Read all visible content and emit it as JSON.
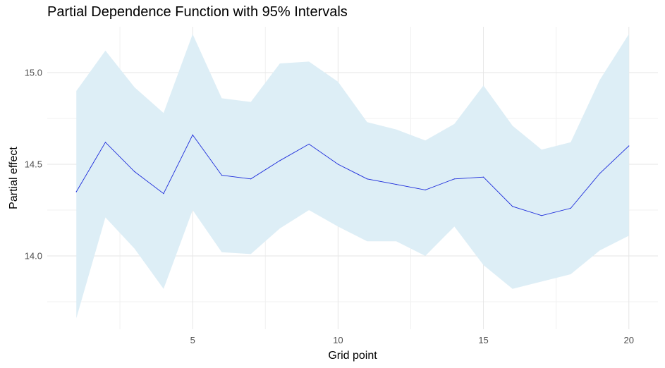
{
  "chart_data": {
    "type": "line",
    "title": "Partial Dependence Function with 95% Intervals",
    "xlabel": "Grid point",
    "ylabel": "Partial effect",
    "x": [
      1,
      2,
      3,
      4,
      5,
      6,
      7,
      8,
      9,
      10,
      11,
      12,
      13,
      14,
      15,
      16,
      17,
      18,
      19,
      20
    ],
    "series": [
      {
        "values": [
          14.35,
          14.62,
          14.46,
          14.34,
          14.66,
          14.44,
          14.42,
          14.52,
          14.61,
          14.5,
          14.42,
          14.39,
          14.36,
          14.42,
          14.43,
          14.27,
          14.22,
          14.26,
          14.45,
          14.6
        ],
        "lower": [
          13.66,
          14.21,
          14.04,
          13.82,
          14.25,
          14.02,
          14.01,
          14.15,
          14.25,
          14.16,
          14.08,
          14.08,
          14.0,
          14.16,
          13.95,
          13.82,
          13.86,
          13.9,
          14.03,
          14.11
        ],
        "upper": [
          14.9,
          15.12,
          14.92,
          14.78,
          15.21,
          14.86,
          14.84,
          15.05,
          15.06,
          14.95,
          14.73,
          14.69,
          14.63,
          14.72,
          14.93,
          14.71,
          14.58,
          14.62,
          14.96,
          15.21
        ]
      }
    ],
    "xlim": [
      0,
      21
    ],
    "ylim": [
      13.6,
      15.25
    ],
    "x_ticks": [
      5,
      10,
      15,
      20
    ],
    "x_tick_labels": [
      "5",
      "10",
      "15",
      "20"
    ],
    "y_ticks": [
      14.0,
      14.5,
      15.0
    ],
    "y_tick_labels": [
      "14.0",
      "14.5",
      "15.0"
    ],
    "grid": true,
    "colors": {
      "line": "#1c2bdb",
      "ribbon": "#ddeef6",
      "grid_major": "#e6e6e6",
      "grid_minor": "#f1f1f1"
    }
  }
}
